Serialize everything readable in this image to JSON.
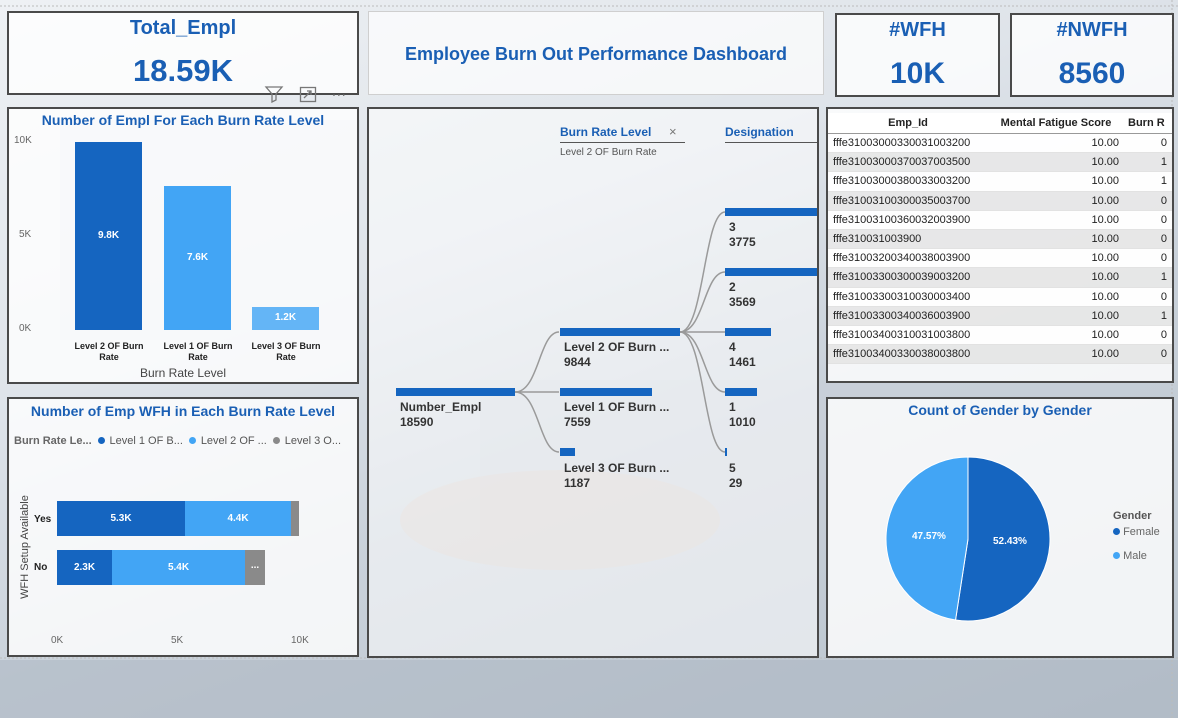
{
  "kpis": {
    "total_empl": {
      "title": "Total_Empl",
      "value": "18.59K"
    },
    "wfh": {
      "title": "#WFH",
      "value": "10K"
    },
    "nwfh": {
      "title": "#NWFH",
      "value": "8560"
    }
  },
  "dashboard_title": "Employee Burn Out Performance Dashboard",
  "bar_chart": {
    "title": "Number of Empl For Each Burn Rate Level",
    "y_ticks": [
      "10K",
      "5K",
      "0K"
    ],
    "xlabel": "Burn Rate Level",
    "bars": [
      {
        "cat1": "Level 2 OF Burn",
        "cat2": "Rate",
        "label": "9.8K",
        "color": "#1565c0"
      },
      {
        "cat1": "Level 1 OF Burn",
        "cat2": "Rate",
        "label": "7.6K",
        "color": "#42a5f5"
      },
      {
        "cat1": "Level 3 OF Burn",
        "cat2": "Rate",
        "label": "1.2K",
        "color": "#64b5f6"
      }
    ]
  },
  "stacked_chart": {
    "title": "Number of Emp WFH in Each Burn Rate Level",
    "legend_title": "Burn Rate Le...",
    "legend": [
      {
        "name": "Level 1 OF B...",
        "color": "#1565c0"
      },
      {
        "name": "Level 2 OF ...",
        "color": "#42a5f5"
      },
      {
        "name": "Level 3 O...",
        "color": "#8a8a8a"
      }
    ],
    "ylabel": "WFH Setup Available",
    "x_ticks": [
      "0K",
      "5K",
      "10K"
    ],
    "rows": [
      {
        "label": "Yes",
        "seg1": "5.3K",
        "seg2": "4.4K",
        "seg3": ""
      },
      {
        "label": "No",
        "seg1": "2.3K",
        "seg2": "5.4K",
        "seg3": "..."
      }
    ]
  },
  "decomp_tree": {
    "header1": "Burn Rate Level",
    "header1_sub": "Level 2 OF Burn Rate",
    "close_symbol": "×",
    "header2": "Designation",
    "root": {
      "name": "Number_Empl",
      "value": "18590"
    },
    "level1": [
      {
        "name": "Level 2 OF Burn ...",
        "value": "9844"
      },
      {
        "name": "Level 1 OF Burn ...",
        "value": "7559"
      },
      {
        "name": "Level 3 OF Burn ...",
        "value": "1187"
      }
    ],
    "level2": [
      {
        "name": "3",
        "value": "3775"
      },
      {
        "name": "2",
        "value": "3569"
      },
      {
        "name": "4",
        "value": "1461"
      },
      {
        "name": "1",
        "value": "1010"
      },
      {
        "name": "5",
        "value": "29"
      }
    ]
  },
  "table": {
    "headers": [
      "Emp_Id",
      "Mental Fatigue Score",
      "Burn R"
    ],
    "rows": [
      [
        "fffe31003000330031003200",
        "10.00",
        "0"
      ],
      [
        "fffe31003000370037003500",
        "10.00",
        "1"
      ],
      [
        "fffe31003000380033003200",
        "10.00",
        "1"
      ],
      [
        "fffe31003100300035003700",
        "10.00",
        "0"
      ],
      [
        "fffe31003100360032003900",
        "10.00",
        "0"
      ],
      [
        "fffe310031003900",
        "10.00",
        "0"
      ],
      [
        "fffe31003200340038003900",
        "10.00",
        "0"
      ],
      [
        "fffe31003300300039003200",
        "10.00",
        "1"
      ],
      [
        "fffe31003300310030003400",
        "10.00",
        "0"
      ],
      [
        "fffe31003300340036003900",
        "10.00",
        "1"
      ],
      [
        "fffe31003400310031003800",
        "10.00",
        "0"
      ],
      [
        "fffe31003400330038003800",
        "10.00",
        "0"
      ]
    ]
  },
  "pie_chart": {
    "title": "Count of Gender by Gender",
    "legend_title": "Gender",
    "slices": [
      {
        "name": "Female",
        "label": "52.43%",
        "value": 52.43,
        "color": "#1565c0"
      },
      {
        "name": "Male",
        "label": "47.57%",
        "value": 47.57,
        "color": "#42a5f5"
      }
    ]
  },
  "icons": {
    "filter": "filter-icon",
    "focus": "focus-mode-icon",
    "more": "more-options-icon",
    "more_symbol": "..."
  },
  "colors": {
    "accent": "#1a5fb4",
    "dark_blue": "#1565c0",
    "light_blue": "#42a5f5",
    "grey": "#8a8a8a"
  }
}
